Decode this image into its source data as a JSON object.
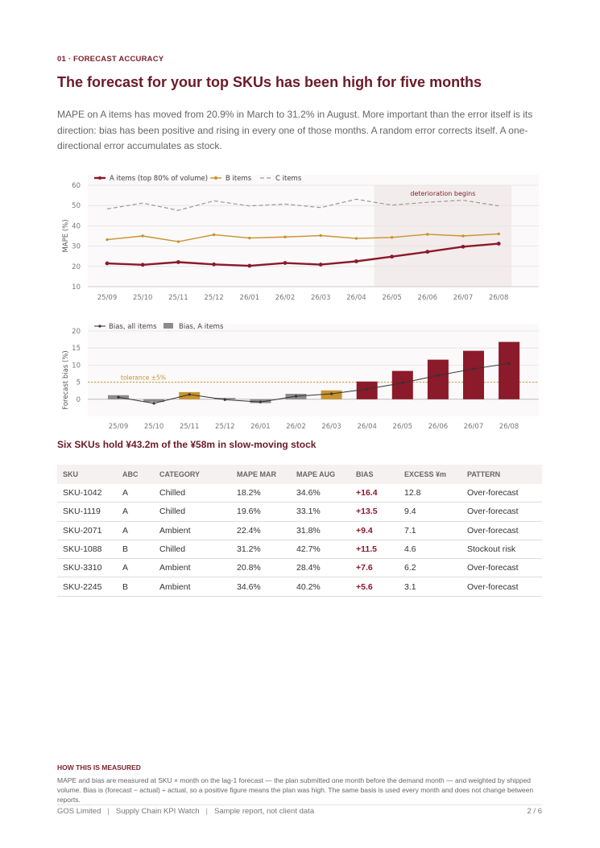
{
  "section": {
    "number": "01",
    "separator": "·",
    "label": "FORECAST ACCURACY"
  },
  "headline": "The forecast for your top SKUs has been high for five months",
  "lede": "MAPE on A items has moved from 20.9% in March to 31.2% in August. More important than the error itself is its direction: bias has been positive and rising in every one of those months. A random error corrects itself. A one-directional error accumulates as stock.",
  "colors": {
    "accent": "#7a1f2b",
    "a_items": "#8b1a2b",
    "b_items": "#c8932e",
    "c_items": "#999999",
    "bias_line": "#333333",
    "shade": "#f3ecec",
    "tolerance": "#c8932e"
  },
  "chart_data": [
    {
      "type": "line",
      "x": [
        "25/09",
        "25/10",
        "25/11",
        "25/12",
        "26/01",
        "26/02",
        "26/03",
        "26/04",
        "26/05",
        "26/06",
        "26/07",
        "26/08"
      ],
      "series": [
        {
          "name": "A items (top 80% of volume)",
          "values": [
            21.5,
            20.8,
            22.1,
            21.0,
            20.3,
            21.7,
            20.9,
            22.5,
            24.8,
            27.2,
            29.7,
            31.2
          ]
        },
        {
          "name": "B items",
          "values": [
            33.2,
            35.0,
            32.2,
            35.6,
            34.0,
            34.5,
            35.2,
            33.8,
            34.3,
            35.8,
            35.0,
            36.0
          ]
        },
        {
          "name": "C items",
          "values": [
            48.3,
            51.2,
            47.6,
            52.3,
            49.8,
            50.7,
            49.0,
            53.1,
            50.2,
            51.6,
            52.6,
            49.8
          ]
        }
      ],
      "ylabel": "MAPE  (%)",
      "ylim": [
        10,
        60
      ],
      "yticks": [
        10,
        20,
        30,
        40,
        50,
        60
      ],
      "grid": true,
      "legend": "top-left",
      "annotation": {
        "label": "deterioration begins",
        "from": "26/05",
        "to": "26/08"
      }
    },
    {
      "type": "bar",
      "x": [
        "25/09",
        "25/10",
        "25/11",
        "25/12",
        "26/01",
        "26/02",
        "26/03",
        "26/04",
        "26/05",
        "26/06",
        "26/07",
        "26/08"
      ],
      "series": [
        {
          "name": "Bias, A items",
          "values": [
            1.2,
            -0.8,
            2.1,
            0.4,
            -1.1,
            1.6,
            2.6,
            5.2,
            8.3,
            11.6,
            14.2,
            16.8
          ],
          "colors": [
            "#8c8c8c",
            "#8c8c8c",
            "#c8932e",
            "#8c8c8c",
            "#8c8c8c",
            "#8c8c8c",
            "#c8932e",
            "#8b1a2b",
            "#8b1a2b",
            "#8b1a2b",
            "#8b1a2b",
            "#8b1a2b"
          ]
        },
        {
          "name": "Bias, all items",
          "type": "line",
          "values": [
            0.6,
            -1.2,
            1.4,
            -0.1,
            -0.8,
            0.9,
            1.6,
            3.0,
            4.8,
            7.0,
            8.9,
            10.5
          ]
        }
      ],
      "ylabel": "Forecast bias  (%)",
      "ylim": [
        -5,
        20
      ],
      "yticks": [
        0,
        5,
        10,
        15,
        20
      ],
      "grid": true,
      "legend": "top-left",
      "reference_line": {
        "label": "tolerance  ±5%",
        "value": 5
      }
    }
  ],
  "table": {
    "title": "Six SKUs hold ¥43.2m of the ¥58m in slow-moving stock",
    "columns": [
      "SKU",
      "ABC",
      "CATEGORY",
      "MAPE MAR",
      "MAPE AUG",
      "BIAS",
      "EXCESS ¥m",
      "PATTERN"
    ],
    "rows": [
      [
        "SKU-1042",
        "A",
        "Chilled",
        "18.2%",
        "34.6%",
        "+16.4",
        "12.8",
        "Over-forecast"
      ],
      [
        "SKU-1119",
        "A",
        "Chilled",
        "19.6%",
        "33.1%",
        "+13.5",
        "9.4",
        "Over-forecast"
      ],
      [
        "SKU-2071",
        "A",
        "Ambient",
        "22.4%",
        "31.8%",
        "+9.4",
        "7.1",
        "Over-forecast"
      ],
      [
        "SKU-1088",
        "B",
        "Chilled",
        "31.2%",
        "42.7%",
        "+11.5",
        "4.6",
        "Stockout risk"
      ],
      [
        "SKU-3310",
        "A",
        "Ambient",
        "20.8%",
        "28.4%",
        "+7.6",
        "6.2",
        "Over-forecast"
      ],
      [
        "SKU-2245",
        "B",
        "Ambient",
        "34.6%",
        "40.2%",
        "+5.6",
        "3.1",
        "Over-forecast"
      ]
    ]
  },
  "method": {
    "label": "HOW THIS IS MEASURED",
    "text": "MAPE and bias are measured at SKU × month on the lag-1 forecast — the plan submitted one month before the demand month — and weighted by shipped volume. Bias is (forecast − actual) ÷ actual, so a positive figure means the plan was high. The same basis is used every month and does not change between reports."
  },
  "footer": {
    "company": "GOS Limited",
    "product": "Supply Chain KPI Watch",
    "note": "Sample report, not client data",
    "page": "2 / 6"
  }
}
